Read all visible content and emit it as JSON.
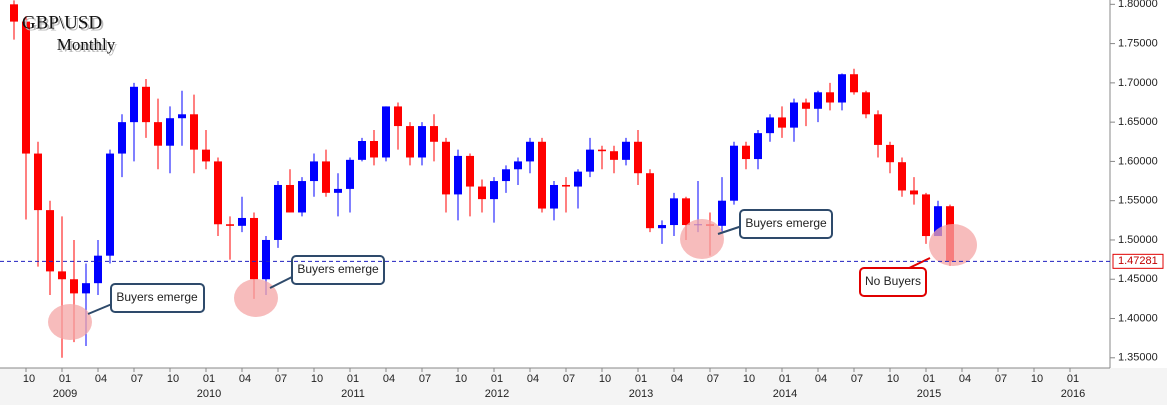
{
  "chart_data": {
    "type": "candlestick",
    "title": "GBP\\USD",
    "subtitle": "Monthly",
    "categories": [
      null,
      "10",
      null,
      null,
      "01",
      null,
      null,
      "04",
      null,
      null,
      "07",
      null,
      null,
      "10",
      null,
      null,
      "01",
      null,
      null,
      "04",
      null,
      null,
      "07",
      null,
      null,
      "10",
      null,
      null,
      "01",
      null,
      null,
      "04",
      null,
      null,
      "07",
      null,
      null,
      "10",
      null,
      null,
      "01",
      null,
      null,
      "04",
      null,
      null,
      "07",
      null,
      null,
      "10",
      null,
      null,
      "01",
      null,
      null,
      "04",
      null,
      null,
      "07",
      null,
      null,
      "10",
      null,
      null,
      "01",
      null,
      null,
      "04",
      null,
      null,
      "07",
      null,
      null,
      "10",
      null,
      null,
      "01",
      null,
      null,
      "04",
      null,
      null,
      "07",
      null,
      null,
      "10",
      null,
      null,
      "01"
    ],
    "years": [
      null,
      null,
      null,
      null,
      "2009",
      null,
      null,
      null,
      null,
      null,
      null,
      null,
      null,
      null,
      null,
      null,
      "2010",
      null,
      null,
      null,
      null,
      null,
      null,
      null,
      null,
      null,
      null,
      null,
      "2011",
      null,
      null,
      null,
      null,
      null,
      null,
      null,
      null,
      null,
      null,
      null,
      "2012",
      null,
      null,
      null,
      null,
      null,
      null,
      null,
      null,
      null,
      null,
      null,
      "2013",
      null,
      null,
      null,
      null,
      null,
      null,
      null,
      null,
      null,
      null,
      null,
      "2014",
      null,
      null,
      null,
      null,
      null,
      null,
      null,
      null,
      null,
      null,
      null,
      "2015",
      null,
      null,
      null,
      null,
      null,
      null,
      null,
      null,
      null,
      null,
      null,
      "2016"
    ],
    "open": [
      1.8,
      1.778,
      1.61,
      1.538,
      1.46,
      1.45,
      1.432,
      1.445,
      1.48,
      1.61,
      1.65,
      1.695,
      1.65,
      1.62,
      1.655,
      1.66,
      1.615,
      1.6,
      1.52,
      1.518,
      1.528,
      1.45,
      1.5,
      1.57,
      1.535,
      1.575,
      1.6,
      1.56,
      1.565,
      1.602,
      1.626,
      1.605,
      1.67,
      1.645,
      1.605,
      1.645,
      1.625,
      1.558,
      1.607,
      1.568,
      1.552,
      1.575,
      1.59,
      1.6,
      1.625,
      1.54,
      1.57,
      1.568,
      1.587,
      1.615,
      1.613,
      1.602,
      1.625,
      1.585,
      1.515,
      1.519,
      1.553,
      1.519,
      1.52,
      1.518,
      1.55,
      1.62,
      1.603,
      1.636,
      1.656,
      1.643,
      1.675,
      1.667,
      1.688,
      1.675,
      1.711,
      1.688,
      1.66,
      1.621,
      1.599,
      1.563,
      1.558,
      1.505,
      1.543,
      null,
      null,
      null,
      null,
      null,
      null,
      null,
      null,
      null,
      null
    ],
    "high": [
      1.805,
      1.785,
      1.625,
      1.55,
      1.53,
      1.5,
      1.47,
      1.5,
      1.615,
      1.66,
      1.7,
      1.705,
      1.68,
      1.67,
      1.69,
      1.685,
      1.64,
      1.605,
      1.53,
      1.555,
      1.535,
      1.505,
      1.575,
      1.59,
      1.58,
      1.61,
      1.615,
      1.585,
      1.605,
      1.63,
      1.64,
      1.67,
      1.675,
      1.65,
      1.65,
      1.66,
      1.63,
      1.615,
      1.61,
      1.577,
      1.58,
      1.595,
      1.605,
      1.63,
      1.63,
      1.575,
      1.58,
      1.59,
      1.63,
      1.62,
      1.62,
      1.63,
      1.64,
      1.59,
      1.525,
      1.56,
      1.555,
      1.575,
      1.535,
      1.58,
      1.625,
      1.625,
      1.64,
      1.66,
      1.67,
      1.68,
      1.68,
      1.69,
      1.7,
      1.712,
      1.718,
      1.69,
      1.665,
      1.625,
      1.605,
      1.58,
      1.56,
      1.55,
      1.545,
      null,
      null,
      null,
      null,
      null,
      null,
      null,
      null,
      null,
      null
    ],
    "low": [
      1.755,
      1.526,
      1.466,
      1.43,
      1.35,
      1.37,
      1.365,
      1.43,
      1.47,
      1.58,
      1.6,
      1.63,
      1.59,
      1.585,
      1.62,
      1.585,
      1.59,
      1.505,
      1.475,
      1.51,
      1.425,
      1.43,
      1.49,
      1.535,
      1.53,
      1.555,
      1.555,
      1.53,
      1.535,
      1.6,
      1.595,
      1.6,
      1.615,
      1.595,
      1.595,
      1.6,
      1.535,
      1.525,
      1.53,
      1.535,
      1.522,
      1.56,
      1.57,
      1.585,
      1.535,
      1.525,
      1.535,
      1.54,
      1.58,
      1.59,
      1.585,
      1.595,
      1.57,
      1.51,
      1.495,
      1.505,
      1.5,
      1.51,
      1.48,
      1.51,
      1.545,
      1.59,
      1.59,
      1.625,
      1.63,
      1.625,
      1.645,
      1.65,
      1.665,
      1.665,
      1.685,
      1.655,
      1.605,
      1.585,
      1.555,
      1.545,
      1.495,
      1.505,
      1.467,
      null,
      null,
      null,
      null,
      null,
      null,
      null,
      null,
      null,
      null
    ],
    "close": [
      1.778,
      1.61,
      1.538,
      1.46,
      1.45,
      1.432,
      1.445,
      1.48,
      1.61,
      1.65,
      1.695,
      1.65,
      1.62,
      1.655,
      1.66,
      1.615,
      1.6,
      1.52,
      1.518,
      1.528,
      1.45,
      1.5,
      1.57,
      1.535,
      1.575,
      1.6,
      1.56,
      1.565,
      1.602,
      1.626,
      1.605,
      1.67,
      1.645,
      1.605,
      1.645,
      1.625,
      1.558,
      1.607,
      1.568,
      1.552,
      1.575,
      1.59,
      1.6,
      1.625,
      1.54,
      1.57,
      1.568,
      1.587,
      1.615,
      1.613,
      1.602,
      1.625,
      1.585,
      1.515,
      1.519,
      1.553,
      1.519,
      1.52,
      1.518,
      1.55,
      1.62,
      1.603,
      1.636,
      1.656,
      1.643,
      1.675,
      1.667,
      1.688,
      1.675,
      1.711,
      1.688,
      1.66,
      1.621,
      1.599,
      1.563,
      1.558,
      1.505,
      1.543,
      1.4728,
      null,
      null,
      null,
      null,
      null,
      null,
      null,
      null,
      null,
      null
    ],
    "up_color": "#0000ff",
    "down_color": "#ff0000",
    "ylim": [
      1.337,
      1.8055
    ],
    "yticks": [
      {
        "value": 1.35,
        "label": "1.35000"
      },
      {
        "value": 1.4,
        "label": "1.40000"
      },
      {
        "value": 1.45,
        "label": "1.45000"
      },
      {
        "value": 1.5,
        "label": "1.50000"
      },
      {
        "value": 1.55,
        "label": "1.55000"
      },
      {
        "value": 1.6,
        "label": "1.60000"
      },
      {
        "value": 1.65,
        "label": "1.65000"
      },
      {
        "value": 1.7,
        "label": "1.70000"
      },
      {
        "value": 1.75,
        "label": "1.75000"
      },
      {
        "value": 1.8,
        "label": "1.80000"
      }
    ],
    "current_price": 1.47281,
    "annotations": [
      "Buyers emerge",
      "Buyers emerge",
      "Buyers emerge",
      "No Buyers"
    ]
  }
}
